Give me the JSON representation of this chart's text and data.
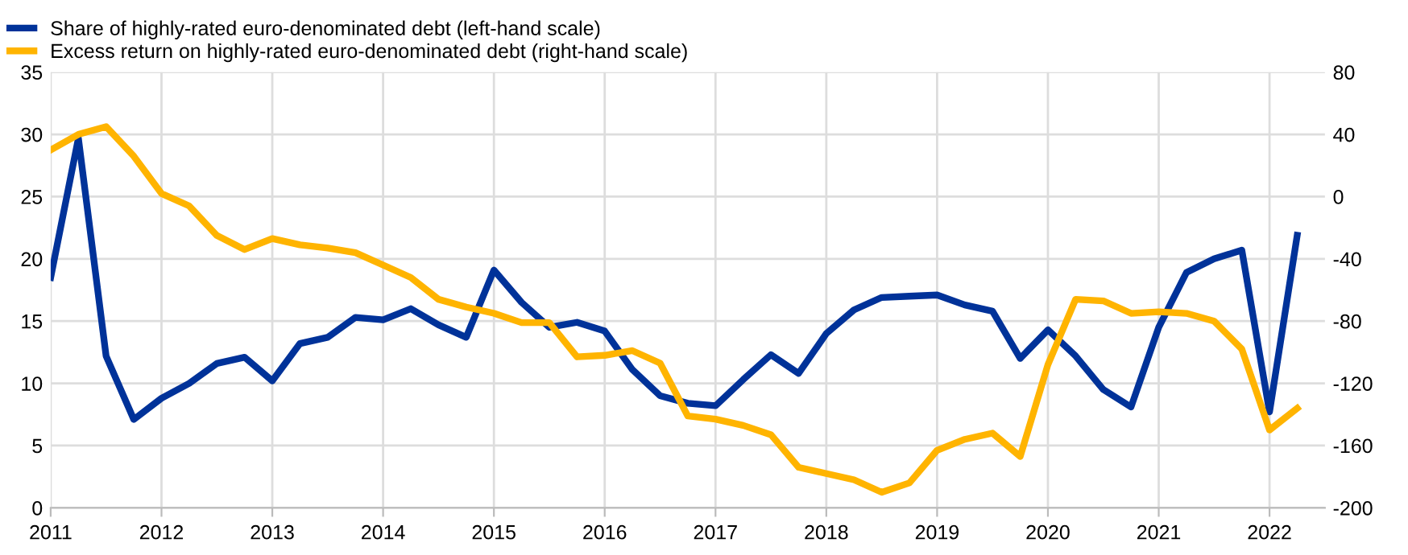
{
  "chart_data": {
    "type": "line",
    "x": [
      2011.0,
      2011.25,
      2011.5,
      2011.75,
      2012.0,
      2012.25,
      2012.5,
      2012.75,
      2013.0,
      2013.25,
      2013.5,
      2013.75,
      2014.0,
      2014.25,
      2014.5,
      2014.75,
      2015.0,
      2015.25,
      2015.5,
      2015.75,
      2016.0,
      2016.25,
      2016.5,
      2016.75,
      2017.0,
      2017.25,
      2017.5,
      2017.75,
      2018.0,
      2018.25,
      2018.5,
      2018.75,
      2019.0,
      2019.25,
      2019.5,
      2019.75,
      2020.0,
      2020.25,
      2020.5,
      2020.75,
      2021.0,
      2021.25,
      2021.5,
      2021.75,
      2022.0,
      2022.25
    ],
    "series": [
      {
        "name": "Share of highly-rated euro-denominated debt (left-hand scale)",
        "color": "#003299",
        "values": [
          18.5,
          29.7,
          12.2,
          7.1,
          8.8,
          10.0,
          11.6,
          12.1,
          10.2,
          13.2,
          13.7,
          15.3,
          15.1,
          16.0,
          14.7,
          13.7,
          19.1,
          16.5,
          14.5,
          14.9,
          14.2,
          11.1,
          9.0,
          8.4,
          8.2,
          10.3,
          12.3,
          10.8,
          14.0,
          15.9,
          16.9,
          17.0,
          17.1,
          16.3,
          15.8,
          12.0,
          14.3,
          12.2,
          9.5,
          8.1,
          14.5,
          18.9,
          20.0,
          20.7,
          7.7,
          21.9
        ]
      },
      {
        "name": "Excess return on highly-rated euro-denominated debt (right-hand scale)",
        "color": "#ffb400",
        "axis": "y2",
        "values": [
          30,
          40,
          45,
          26,
          2,
          -6,
          -25,
          -34,
          -27,
          -31,
          -33,
          -36,
          -44,
          -52,
          -66,
          -71,
          -75,
          -81,
          -81,
          -103,
          -102,
          -99,
          -107,
          -141,
          -143,
          -147,
          -153,
          -174,
          -178,
          -182,
          -190,
          -184,
          -163,
          -156,
          -152,
          -167,
          -108,
          -66,
          -67,
          -75,
          -74,
          -75,
          -80,
          -98,
          -150,
          -136
        ]
      }
    ],
    "xlim": [
      2011,
      2022.5
    ],
    "xticks": [
      2011,
      2012,
      2013,
      2014,
      2015,
      2016,
      2017,
      2018,
      2019,
      2020,
      2021,
      2022
    ],
    "ylim": [
      0,
      35
    ],
    "yticks": [
      0,
      5,
      10,
      15,
      20,
      25,
      30,
      35
    ],
    "y2lim": [
      -200,
      80
    ],
    "y2ticks": [
      -200,
      -160,
      -120,
      -80,
      -40,
      0,
      40,
      80
    ],
    "grid": true,
    "legend": "top left",
    "marker": "none",
    "line_style": "solid"
  }
}
